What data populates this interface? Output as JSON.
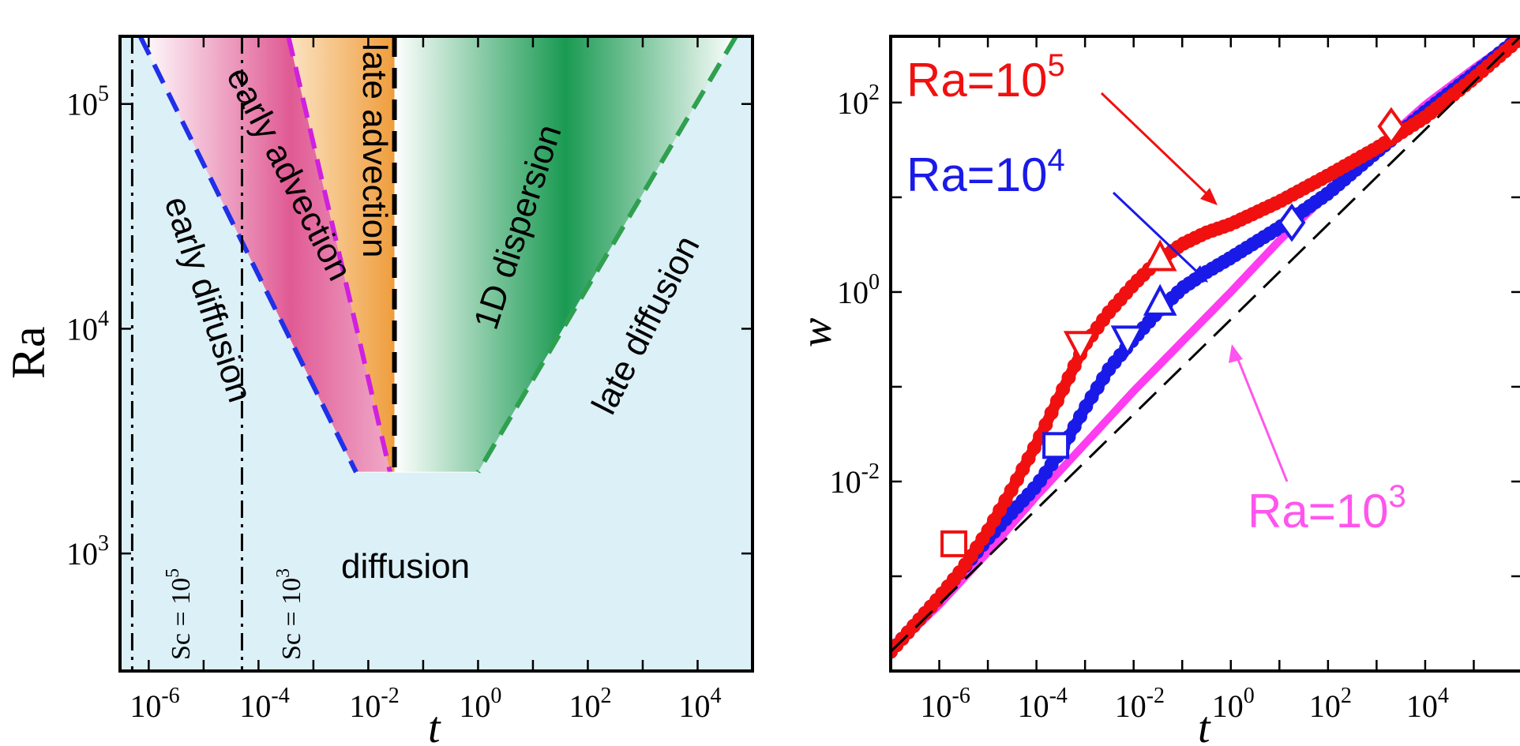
{
  "chart_data": [
    {
      "type": "area",
      "panel": "left",
      "xlabel": "t",
      "ylabel": "Ra",
      "xscale": "log",
      "yscale": "log",
      "xlim": [
        3e-07,
        100000.0
      ],
      "ylim": [
        300,
        200000
      ],
      "x_ticks": [
        {
          "base": "10",
          "exp": "-6"
        },
        {
          "base": "10",
          "exp": "-4"
        },
        {
          "base": "10",
          "exp": "-2"
        },
        {
          "base": "10",
          "exp": "0"
        },
        {
          "base": "10",
          "exp": "2"
        },
        {
          "base": "10",
          "exp": "4"
        }
      ],
      "y_ticks": [
        {
          "base": "10",
          "exp": "3"
        },
        {
          "base": "10",
          "exp": "4"
        },
        {
          "base": "10",
          "exp": "5"
        }
      ],
      "background_color": "#dcf0f7",
      "regions": [
        {
          "label": "early diffusion",
          "color": "#ffffff"
        },
        {
          "label": "early advection",
          "color": "#e05a94"
        },
        {
          "label": "late advection",
          "color": "#ef9d3c"
        },
        {
          "label": "1D dispersion",
          "color": "#1a9a52"
        },
        {
          "label": "late diffusion",
          "color": "#dcf0f7"
        },
        {
          "label": "diffusion",
          "color": "#dcf0f7"
        }
      ],
      "boundaries": [
        {
          "style": "dashed",
          "color": "#2030e8",
          "points": [
            [
              7e-07,
              200000
            ],
            [
              0.006,
              2300
            ]
          ]
        },
        {
          "style": "dashed",
          "color": "#d020e0",
          "points": [
            [
              0.00035,
              200000
            ],
            [
              0.025,
              2300
            ]
          ]
        },
        {
          "style": "dashed",
          "color": "#000000",
          "points": [
            [
              0.03,
              200000
            ],
            [
              0.03,
              2300
            ]
          ]
        },
        {
          "style": "dashed",
          "color": "#2fa050",
          "points": [
            [
              50000,
              200000
            ],
            [
              1.0,
              2300
            ]
          ]
        }
      ],
      "schmidt_lines": [
        {
          "x": 5e-07,
          "label_pre": "Sc = 10",
          "label_exp": "5"
        },
        {
          "x": 5e-05,
          "label_pre": "Sc = 10",
          "label_exp": "3"
        }
      ]
    },
    {
      "type": "line",
      "panel": "right",
      "xlabel": "t",
      "ylabel": "w",
      "xscale": "log",
      "yscale": "log",
      "xlim": [
        1e-07,
        1000000.0
      ],
      "ylim": [
        0.0001,
        500
      ],
      "x_ticks": [
        {
          "base": "10",
          "exp": "-6"
        },
        {
          "base": "10",
          "exp": "-4"
        },
        {
          "base": "10",
          "exp": "-2"
        },
        {
          "base": "10",
          "exp": "0"
        },
        {
          "base": "10",
          "exp": "2"
        },
        {
          "base": "10",
          "exp": "4"
        }
      ],
      "y_ticks": [
        {
          "base": "10",
          "exp": "-2"
        },
        {
          "base": "10",
          "exp": "0"
        },
        {
          "base": "10",
          "exp": "2"
        }
      ],
      "series": [
        {
          "name": "Ra=10^5",
          "label_pre": "Ra=10",
          "label_exp": "5",
          "color": "#f01010",
          "x": [
            1e-07,
            1e-06,
            3e-06,
            1e-05,
            3e-05,
            0.0001,
            0.0003,
            0.001,
            0.003,
            0.01,
            0.03,
            0.1,
            0.3,
            1,
            10,
            100,
            1000,
            10000,
            100000,
            1000000
          ],
          "y": [
            0.00016,
            0.0006,
            0.0012,
            0.003,
            0.008,
            0.025,
            0.08,
            0.28,
            0.6,
            1.2,
            2.1,
            3.2,
            4.2,
            5.2,
            9,
            17,
            33,
            70,
            180,
            500
          ]
        },
        {
          "name": "Ra=10^4",
          "label_pre": "Ra=10",
          "label_exp": "4",
          "color": "#1a1ae8",
          "x": [
            1e-07,
            1e-06,
            1e-05,
            0.0001,
            0.0003,
            0.001,
            0.003,
            0.01,
            0.03,
            0.1,
            0.3,
            1,
            10,
            100,
            1000,
            10000,
            100000,
            1000000
          ],
          "y": [
            0.00016,
            0.0006,
            0.0025,
            0.009,
            0.02,
            0.06,
            0.15,
            0.32,
            0.6,
            1.1,
            1.6,
            2.3,
            4.8,
            11,
            30,
            80,
            200,
            520
          ]
        },
        {
          "name": "Ra=10^3",
          "label_pre": "Ra=10",
          "label_exp": "3",
          "color": "#ff3cf0",
          "x": [
            1e-07,
            1e-06,
            1e-05,
            0.0001,
            0.001,
            0.01,
            0.1,
            1,
            10,
            100,
            1000,
            10000,
            100000,
            1000000
          ],
          "y": [
            0.00016,
            0.0005,
            0.0018,
            0.007,
            0.025,
            0.09,
            0.3,
            1.0,
            3.5,
            11,
            33,
            95,
            230,
            530
          ]
        },
        {
          "name": "reference",
          "color": "#000000",
          "style": "dashed",
          "x": [
            1e-07,
            1000000
          ],
          "y": [
            0.00016,
            520
          ]
        }
      ],
      "markers": [
        {
          "series": "Ra=10^5",
          "shape": "square",
          "x": 2e-06,
          "y": 0.0022
        },
        {
          "series": "Ra=10^5",
          "shape": "triangle-down",
          "x": 0.0008,
          "y": 0.28
        },
        {
          "series": "Ra=10^5",
          "shape": "triangle-up",
          "x": 0.035,
          "y": 2.3
        },
        {
          "series": "Ra=10^5",
          "shape": "diamond",
          "x": 2000,
          "y": 56
        },
        {
          "series": "Ra=10^4",
          "shape": "square",
          "x": 0.00025,
          "y": 0.024
        },
        {
          "series": "Ra=10^4",
          "shape": "triangle-down",
          "x": 0.0075,
          "y": 0.32
        },
        {
          "series": "Ra=10^4",
          "shape": "triangle-up",
          "x": 0.035,
          "y": 0.78
        },
        {
          "series": "Ra=10^4",
          "shape": "diamond",
          "x": 18,
          "y": 5.4
        }
      ]
    }
  ]
}
